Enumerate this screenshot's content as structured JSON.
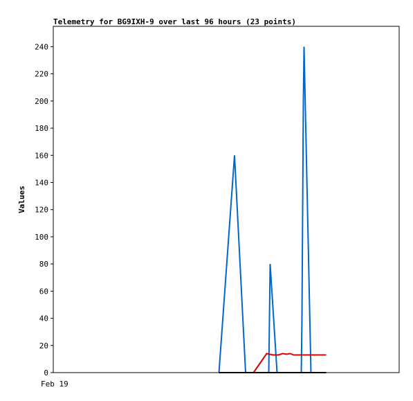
{
  "chart_data": {
    "type": "line",
    "title": "Telemetry for BG9IXH-9 over last 96 hours (23 points)",
    "ylabel": "Values",
    "xlabel": "",
    "x_tick_labels": [
      {
        "label": "Feb 19",
        "x": 0
      }
    ],
    "xlim": [
      0,
      100
    ],
    "ylim": [
      0,
      255
    ],
    "y_ticks": [
      0,
      20,
      40,
      60,
      80,
      100,
      120,
      140,
      160,
      180,
      200,
      220,
      240
    ],
    "grid": false,
    "series": [
      {
        "color": "#0066cc",
        "points": [
          [
            47.9,
            0
          ],
          [
            52.4,
            160
          ],
          [
            55.6,
            0
          ],
          [
            57.5,
            0
          ],
          [
            62.3,
            0
          ],
          [
            62.7,
            80
          ],
          [
            64.7,
            0
          ],
          [
            71.7,
            0
          ],
          [
            71.9,
            40
          ],
          [
            72.3,
            200
          ],
          [
            72.5,
            240
          ],
          [
            74.5,
            0
          ],
          [
            78.9,
            0
          ]
        ]
      },
      {
        "color": "#dd0000",
        "points": [
          [
            57.9,
            0
          ],
          [
            61.7,
            14
          ],
          [
            63.5,
            13
          ],
          [
            65.1,
            13
          ],
          [
            66.3,
            14
          ],
          [
            67.5,
            13.5
          ],
          [
            68.5,
            14
          ],
          [
            69.5,
            13
          ],
          [
            78.9,
            13
          ]
        ]
      },
      {
        "color": "#000000",
        "points": [
          [
            47.9,
            0
          ],
          [
            78.9,
            0
          ]
        ]
      }
    ]
  }
}
